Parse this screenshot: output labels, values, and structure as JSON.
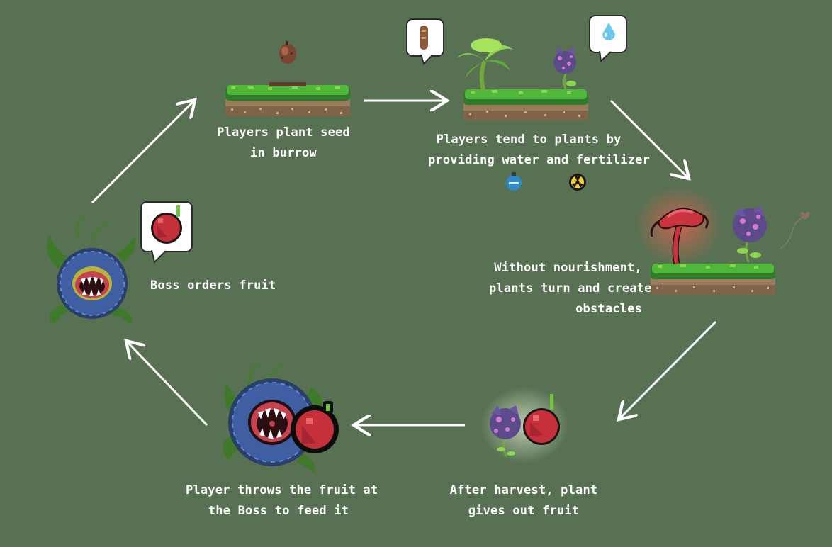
{
  "steps": {
    "plant_seed": {
      "line1": "Players plant seed",
      "line2": "in burrow"
    },
    "tend_plants": {
      "line1": "Players tend to plants by",
      "line2": "providing water and fertilizer"
    },
    "no_nourishment": {
      "line1": "Without nourishment,",
      "line2": "plants turn and create",
      "line3": "obstacles"
    },
    "harvest": {
      "line1": "After harvest, plant",
      "line2": "gives out fruit"
    },
    "throw_fruit": {
      "line1": "Player throws the fruit at",
      "line2": "the Boss to feed it"
    },
    "boss_orders": {
      "line1": "Boss orders fruit"
    }
  },
  "colors": {
    "background": "#587152",
    "arrow": "#ffffff",
    "grass": "#4fb83a",
    "soil": "#9a7b5c",
    "fruit": "#c6303a",
    "corrupted_plant": "#c9343e",
    "berry_plant": "#5d4a8a",
    "boss_petal": "#3f5fa2"
  },
  "icons": [
    "seed-icon",
    "worm-icon",
    "water-drop-icon",
    "water-bottle-icon",
    "fertilizer-icon",
    "fruit-icon",
    "boss-plant-icon",
    "heart-icon"
  ]
}
